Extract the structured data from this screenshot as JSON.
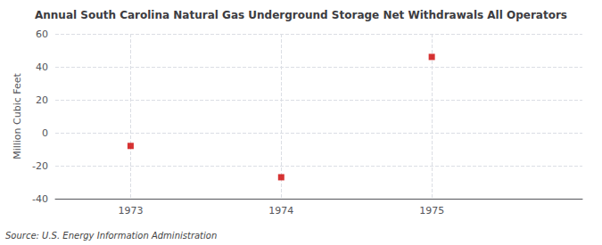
{
  "chart_data": {
    "type": "scatter",
    "title": "Annual South Carolina Natural Gas Underground Storage Net Withdrawals All Operators",
    "ylabel": "Million Cubic Feet",
    "source": "Source: U.S. Energy Information Administration",
    "x": [
      1973,
      1974,
      1975
    ],
    "values": [
      -8,
      -27,
      46
    ],
    "color": "#cc0000",
    "marker": "square",
    "xlim": [
      1972.5,
      1976.0
    ],
    "xticks": [
      1973,
      1974,
      1975
    ],
    "ylim": [
      -40,
      60
    ],
    "yticks": [
      -40,
      -20,
      0,
      20,
      40,
      60
    ],
    "grid": true
  }
}
